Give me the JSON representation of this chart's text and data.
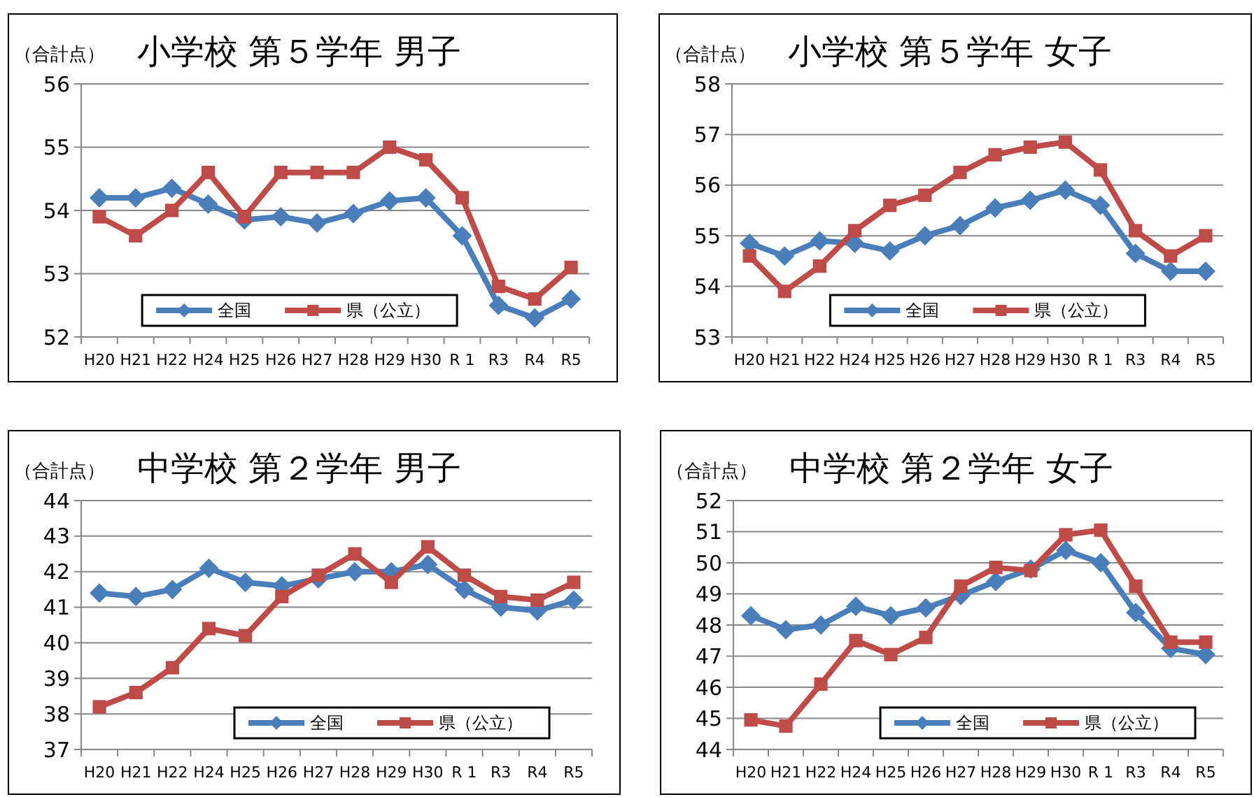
{
  "chart_data": [
    {
      "type": "line",
      "title": "小学校 第５学年 男子",
      "ylabel": "（合計点）",
      "categories": [
        "H20",
        "H21",
        "H22",
        "H24",
        "H25",
        "H26",
        "H27",
        "H28",
        "H29",
        "H30",
        "R 1",
        "R3",
        "R4",
        "R5"
      ],
      "ylim": [
        52,
        56
      ],
      "yticks": [
        52,
        53,
        54,
        55,
        56
      ],
      "grid": "y",
      "legend": "bottom",
      "series": [
        {
          "name": "全国",
          "color": "#4a7ebb",
          "marker": "diamond",
          "values": [
            54.2,
            54.2,
            54.35,
            54.1,
            53.85,
            53.9,
            53.8,
            53.95,
            54.15,
            54.2,
            53.6,
            52.5,
            52.3,
            52.6
          ]
        },
        {
          "name": "県（公立）",
          "color": "#be4b48",
          "marker": "square",
          "values": [
            53.9,
            53.6,
            54.0,
            54.6,
            53.9,
            54.6,
            54.6,
            54.6,
            55.0,
            54.8,
            54.2,
            52.8,
            52.6,
            53.1
          ]
        }
      ]
    },
    {
      "type": "line",
      "title": "小学校 第５学年 女子",
      "ylabel": "（合計点）",
      "categories": [
        "H20",
        "H21",
        "H22",
        "H24",
        "H25",
        "H26",
        "H27",
        "H28",
        "H29",
        "H30",
        "R 1",
        "R3",
        "R4",
        "R5"
      ],
      "ylim": [
        53,
        58
      ],
      "yticks": [
        53,
        54,
        55,
        56,
        57,
        58
      ],
      "grid": "y",
      "legend": "bottom",
      "series": [
        {
          "name": "全国",
          "color": "#4a7ebb",
          "marker": "diamond",
          "values": [
            54.85,
            54.6,
            54.9,
            54.85,
            54.7,
            55.0,
            55.2,
            55.55,
            55.7,
            55.9,
            55.6,
            54.65,
            54.3,
            54.3
          ]
        },
        {
          "name": "県（公立）",
          "color": "#be4b48",
          "marker": "square",
          "values": [
            54.6,
            53.9,
            54.4,
            55.1,
            55.6,
            55.8,
            56.25,
            56.6,
            56.75,
            56.85,
            56.3,
            55.1,
            54.6,
            55.0
          ]
        }
      ]
    },
    {
      "type": "line",
      "title": "中学校 第２学年 男子",
      "ylabel": "（合計点）",
      "categories": [
        "H20",
        "H21",
        "H22",
        "H24",
        "H25",
        "H26",
        "H27",
        "H28",
        "H29",
        "H30",
        "R 1",
        "R3",
        "R4",
        "R5"
      ],
      "ylim": [
        37,
        44
      ],
      "yticks": [
        37,
        38,
        39,
        40,
        41,
        42,
        43,
        44
      ],
      "grid": "y",
      "legend": "bottom",
      "series": [
        {
          "name": "全国",
          "color": "#4a7ebb",
          "marker": "diamond",
          "values": [
            41.4,
            41.3,
            41.5,
            42.1,
            41.7,
            41.6,
            41.8,
            42.0,
            42.0,
            42.2,
            41.5,
            41.0,
            40.9,
            41.2
          ]
        },
        {
          "name": "県（公立）",
          "color": "#be4b48",
          "marker": "square",
          "values": [
            38.2,
            38.6,
            39.3,
            40.4,
            40.2,
            41.3,
            41.9,
            42.5,
            41.7,
            42.7,
            41.9,
            41.3,
            41.2,
            41.7
          ]
        }
      ]
    },
    {
      "type": "line",
      "title": "中学校 第２学年 女子",
      "ylabel": "（合計点）",
      "categories": [
        "H20",
        "H21",
        "H22",
        "H24",
        "H25",
        "H26",
        "H27",
        "H28",
        "H29",
        "H30",
        "R 1",
        "R3",
        "R4",
        "R5"
      ],
      "ylim": [
        44,
        52
      ],
      "yticks": [
        44,
        45,
        46,
        47,
        48,
        49,
        50,
        51,
        52
      ],
      "grid": "y",
      "legend": "bottom",
      "series": [
        {
          "name": "全国",
          "color": "#4a7ebb",
          "marker": "diamond",
          "values": [
            48.3,
            47.85,
            48.0,
            48.6,
            48.3,
            48.55,
            48.95,
            49.4,
            49.8,
            50.4,
            50.0,
            48.4,
            47.25,
            47.05
          ]
        },
        {
          "name": "県（公立）",
          "color": "#be4b48",
          "marker": "square",
          "values": [
            44.95,
            44.75,
            46.1,
            47.5,
            47.05,
            47.6,
            49.25,
            49.85,
            49.75,
            50.9,
            51.05,
            49.25,
            47.45,
            47.45
          ]
        }
      ]
    }
  ]
}
